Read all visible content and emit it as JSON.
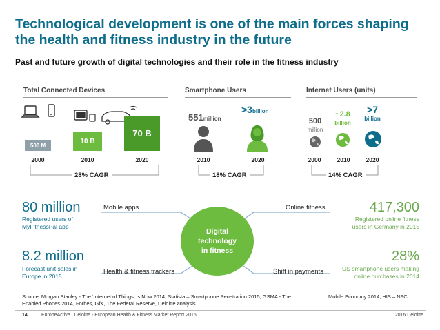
{
  "title": "Technological development is one of the main forces shaping the health and fitness industry in the future",
  "subtitle": "Past and future growth of digital technologies and their role in the fitness industry",
  "chart_data": [
    {
      "type": "bar",
      "title": "Total Connected Devices",
      "categories": [
        "2000",
        "2010",
        "2020"
      ],
      "values": [
        500000000,
        10000000000,
        70000000000
      ],
      "value_labels": [
        "500 M",
        "10 B",
        "70 B"
      ],
      "cagr": "28% CAGR"
    },
    {
      "type": "table",
      "title": "Smartphone Users",
      "categories": [
        "2010",
        "2020"
      ],
      "values": [
        551000000,
        3000000000
      ],
      "value_labels": [
        {
          "number": "551",
          "unit": "million"
        },
        {
          "number": ">3",
          "unit": "billion"
        }
      ],
      "cagr": "18% CAGR"
    },
    {
      "type": "table",
      "title": "Internet Users (units)",
      "categories": [
        "2000",
        "2010",
        "2020"
      ],
      "values": [
        500000000,
        2800000000,
        7000000000
      ],
      "value_labels": [
        {
          "number": "500",
          "unit": "million"
        },
        {
          "number": "~2.8",
          "unit": "billion"
        },
        {
          "number": ">7",
          "unit": "billion"
        }
      ],
      "cagr": "14% CAGR"
    }
  ],
  "center": {
    "line1": "Digital",
    "line2": "technology",
    "line3": "in fitness"
  },
  "connectors": {
    "mobile_apps": "Mobile apps",
    "health_trackers": "Health & fitness trackers",
    "online_fitness": "Online fitness",
    "shift_payments": "Shift in payments"
  },
  "stats": {
    "s1": {
      "value": "80 million",
      "line1": "Registered users of",
      "line2": "MyFitnessPal app"
    },
    "s2": {
      "value": "8.2 million",
      "line1": "Forecast unit sales in",
      "line2": "Europe in 2015"
    },
    "s3": {
      "value": "417,300",
      "line1": "Registered online fitness",
      "line2": "users in Germany in 2015"
    },
    "s4": {
      "value": "28%",
      "line1": "US smartphone users making",
      "line2": "online purchases in 2014"
    }
  },
  "source": {
    "line1": "Source: Morgan Stanley - The ‘Internet of Things’ Is Now 2014, Statista – Smartphone Penetration 2015, GSMA - The",
    "line2": "Enabled Phones 2014, Forbes, GfK, The Federal Reserve, Deloitte analysis",
    "right": "Mobile Economy 2014, HIS – NFC"
  },
  "footer": {
    "page": "14",
    "text": "EuropeActive | Deloitte - European Health & Fitness Market Report 2016",
    "right": "2016 Deloitte"
  },
  "colors": {
    "blue": "#0f6d8c",
    "green": "#6dbb3f",
    "bar_light": "#8fa0a8",
    "bar_mid": "#6dbb3f",
    "bar_dark": "#4a9a2a"
  }
}
